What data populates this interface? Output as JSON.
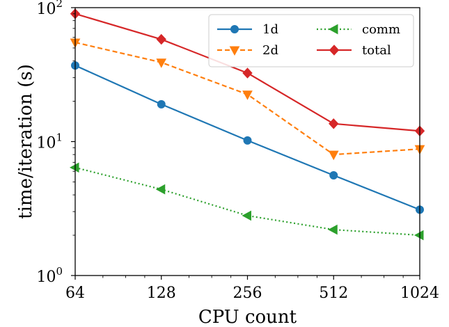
{
  "chart_data": {
    "type": "line",
    "title": "",
    "xlabel": "CPU count",
    "ylabel": "time/iteration (s)",
    "x": [
      64,
      128,
      256,
      512,
      1024
    ],
    "xscale": "log2",
    "yscale": "log10",
    "xlim": [
      64,
      1024
    ],
    "ylim": [
      1,
      100
    ],
    "xtick_labels": [
      "64",
      "128",
      "256",
      "512",
      "1024"
    ],
    "ytick_labels": [
      {
        "base": "10",
        "exp": "0",
        "value": 1
      },
      {
        "base": "10",
        "exp": "1",
        "value": 10
      },
      {
        "base": "10",
        "exp": "2",
        "value": 100
      }
    ],
    "grid": false,
    "legend_position": "top-right",
    "legend_columns": 2,
    "series": [
      {
        "name": "1d",
        "color": "#1f77b4",
        "linestyle": "solid",
        "marker": "circle",
        "values": [
          37,
          19,
          10.2,
          5.6,
          3.1
        ]
      },
      {
        "name": "2d",
        "color": "#ff7f0e",
        "linestyle": "dashed",
        "marker": "triangle-down",
        "values": [
          55,
          39,
          22.5,
          8.0,
          8.8
        ]
      },
      {
        "name": "comm",
        "color": "#2ca02c",
        "linestyle": "dotted",
        "marker": "triangle-left",
        "values": [
          6.4,
          4.4,
          2.8,
          2.2,
          2.0
        ]
      },
      {
        "name": "total",
        "color": "#d62728",
        "linestyle": "solid",
        "marker": "diamond",
        "values": [
          90,
          58,
          32.5,
          13.6,
          12.0
        ]
      }
    ]
  }
}
